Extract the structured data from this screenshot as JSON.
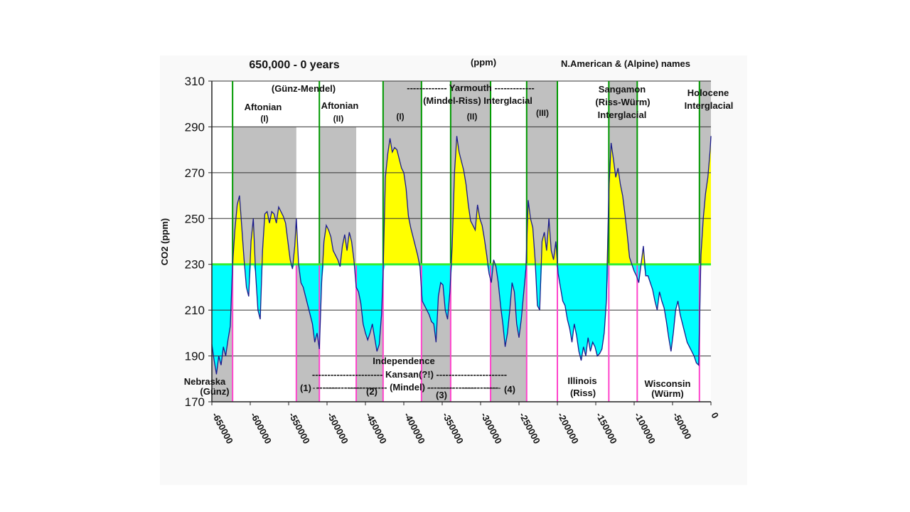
{
  "chart_data": {
    "type": "area",
    "title": "650,000 - 0 years",
    "header_center": "(ppm)",
    "header_right": "N.American & (Alpine) names",
    "ylabel": "CO2 (ppm)",
    "xlabel": "",
    "ylim": [
      170,
      310
    ],
    "xlim": [
      -650000,
      0
    ],
    "baseline": 230,
    "y_ticks": [
      170,
      190,
      210,
      230,
      250,
      270,
      290,
      310
    ],
    "x_ticks": [
      -650000,
      -600000,
      -550000,
      -500000,
      -450000,
      -400000,
      -350000,
      -300000,
      -250000,
      -200000,
      -150000,
      -100000,
      -50000,
      0
    ],
    "colors": {
      "above": "#ffff00",
      "below": "#00ffff",
      "line": "#1a1a8c",
      "interglacial": "#c0c0c0",
      "glacial_boundary": "#ff44cc",
      "interglacial_boundary": "#009900",
      "baseline": "#33ee33"
    },
    "grid": true,
    "interglacial_bands": [
      {
        "x0": -623000,
        "x1": -540000,
        "top": 290
      },
      {
        "x0": -510000,
        "x1": -462000,
        "top": 290
      },
      {
        "x0": -427000,
        "x1": -377000,
        "top": 310
      },
      {
        "x0": -339000,
        "x1": -287000,
        "top": 310
      },
      {
        "x0": -240000,
        "x1": -200000,
        "top": 310
      },
      {
        "x0": -133000,
        "x1": -96000,
        "top": 310
      },
      {
        "x0": -15000,
        "x1": 0,
        "top": 310
      }
    ],
    "glacial_bands": [
      {
        "x0": -540000,
        "x1": -510000
      },
      {
        "x0": -462000,
        "x1": -427000
      },
      {
        "x0": -377000,
        "x1": -339000
      },
      {
        "x0": -287000,
        "x1": -240000
      }
    ],
    "points": [
      [
        -650000,
        195
      ],
      [
        -647000,
        188
      ],
      [
        -644000,
        182
      ],
      [
        -641000,
        190
      ],
      [
        -638000,
        186
      ],
      [
        -635000,
        194
      ],
      [
        -632000,
        190
      ],
      [
        -629000,
        197
      ],
      [
        -626000,
        203
      ],
      [
        -623000,
        230
      ],
      [
        -620000,
        245
      ],
      [
        -617000,
        256
      ],
      [
        -614000,
        260
      ],
      [
        -611000,
        246
      ],
      [
        -608000,
        232
      ],
      [
        -605000,
        220
      ],
      [
        -602000,
        216
      ],
      [
        -599000,
        240
      ],
      [
        -596000,
        250
      ],
      [
        -593000,
        226
      ],
      [
        -590000,
        210
      ],
      [
        -587000,
        206
      ],
      [
        -584000,
        236
      ],
      [
        -581000,
        252
      ],
      [
        -578000,
        253
      ],
      [
        -575000,
        248
      ],
      [
        -572000,
        253
      ],
      [
        -569000,
        252
      ],
      [
        -566000,
        248
      ],
      [
        -563000,
        255
      ],
      [
        -560000,
        253
      ],
      [
        -557000,
        251
      ],
      [
        -554000,
        248
      ],
      [
        -551000,
        240
      ],
      [
        -548000,
        232
      ],
      [
        -545000,
        228
      ],
      [
        -542000,
        238
      ],
      [
        -540000,
        250
      ],
      [
        -537000,
        230
      ],
      [
        -534000,
        222
      ],
      [
        -531000,
        220
      ],
      [
        -528000,
        216
      ],
      [
        -525000,
        212
      ],
      [
        -522000,
        208
      ],
      [
        -519000,
        204
      ],
      [
        -516000,
        196
      ],
      [
        -513000,
        200
      ],
      [
        -510000,
        193
      ],
      [
        -507000,
        222
      ],
      [
        -504000,
        240
      ],
      [
        -501000,
        247
      ],
      [
        -498000,
        245
      ],
      [
        -495000,
        242
      ],
      [
        -492000,
        236
      ],
      [
        -489000,
        234
      ],
      [
        -486000,
        232
      ],
      [
        -483000,
        229
      ],
      [
        -480000,
        238
      ],
      [
        -477000,
        243
      ],
      [
        -474000,
        236
      ],
      [
        -471000,
        244
      ],
      [
        -468000,
        240
      ],
      [
        -465000,
        232
      ],
      [
        -462000,
        220
      ],
      [
        -459000,
        218
      ],
      [
        -456000,
        213
      ],
      [
        -453000,
        204
      ],
      [
        -450000,
        200
      ],
      [
        -447000,
        197
      ],
      [
        -444000,
        200
      ],
      [
        -441000,
        204
      ],
      [
        -438000,
        198
      ],
      [
        -435000,
        192
      ],
      [
        -432000,
        195
      ],
      [
        -429000,
        208
      ],
      [
        -427000,
        226
      ],
      [
        -424000,
        268
      ],
      [
        -421000,
        278
      ],
      [
        -418000,
        285
      ],
      [
        -415000,
        279
      ],
      [
        -412000,
        281
      ],
      [
        -409000,
        280
      ],
      [
        -406000,
        276
      ],
      [
        -403000,
        272
      ],
      [
        -400000,
        270
      ],
      [
        -397000,
        263
      ],
      [
        -394000,
        251
      ],
      [
        -391000,
        246
      ],
      [
        -388000,
        242
      ],
      [
        -385000,
        238
      ],
      [
        -382000,
        234
      ],
      [
        -379000,
        229
      ],
      [
        -376000,
        214
      ],
      [
        -373000,
        212
      ],
      [
        -370000,
        210
      ],
      [
        -367000,
        208
      ],
      [
        -364000,
        205
      ],
      [
        -361000,
        204
      ],
      [
        -358000,
        196
      ],
      [
        -355000,
        216
      ],
      [
        -352000,
        222
      ],
      [
        -349000,
        221
      ],
      [
        -346000,
        210
      ],
      [
        -343000,
        206
      ],
      [
        -340000,
        218
      ],
      [
        -337000,
        238
      ],
      [
        -334000,
        270
      ],
      [
        -331000,
        286
      ],
      [
        -328000,
        279
      ],
      [
        -325000,
        275
      ],
      [
        -322000,
        271
      ],
      [
        -319000,
        265
      ],
      [
        -316000,
        256
      ],
      [
        -313000,
        249
      ],
      [
        -310000,
        247
      ],
      [
        -307000,
        245
      ],
      [
        -304000,
        256
      ],
      [
        -301000,
        250
      ],
      [
        -298000,
        247
      ],
      [
        -295000,
        241
      ],
      [
        -292000,
        234
      ],
      [
        -289000,
        226
      ],
      [
        -286000,
        222
      ],
      [
        -283000,
        232
      ],
      [
        -280000,
        229
      ],
      [
        -277000,
        222
      ],
      [
        -274000,
        212
      ],
      [
        -271000,
        204
      ],
      [
        -268000,
        194
      ],
      [
        -265000,
        200
      ],
      [
        -262000,
        210
      ],
      [
        -259000,
        222
      ],
      [
        -256000,
        218
      ],
      [
        -253000,
        204
      ],
      [
        -250000,
        198
      ],
      [
        -247000,
        206
      ],
      [
        -244000,
        217
      ],
      [
        -241000,
        228
      ],
      [
        -238000,
        258
      ],
      [
        -235000,
        250
      ],
      [
        -232000,
        246
      ],
      [
        -229000,
        232
      ],
      [
        -226000,
        212
      ],
      [
        -223000,
        210
      ],
      [
        -220000,
        240
      ],
      [
        -217000,
        244
      ],
      [
        -214000,
        236
      ],
      [
        -211000,
        250
      ],
      [
        -208000,
        236
      ],
      [
        -205000,
        232
      ],
      [
        -202000,
        240
      ],
      [
        -199000,
        226
      ],
      [
        -196000,
        220
      ],
      [
        -193000,
        214
      ],
      [
        -190000,
        212
      ],
      [
        -187000,
        206
      ],
      [
        -184000,
        202
      ],
      [
        -181000,
        196
      ],
      [
        -178000,
        204
      ],
      [
        -175000,
        199
      ],
      [
        -172000,
        192
      ],
      [
        -169000,
        188
      ],
      [
        -166000,
        194
      ],
      [
        -163000,
        190
      ],
      [
        -160000,
        198
      ],
      [
        -157000,
        192
      ],
      [
        -154000,
        196
      ],
      [
        -151000,
        194
      ],
      [
        -148000,
        190
      ],
      [
        -145000,
        191
      ],
      [
        -142000,
        193
      ],
      [
        -139000,
        200
      ],
      [
        -136000,
        215
      ],
      [
        -133000,
        262
      ],
      [
        -130000,
        283
      ],
      [
        -127000,
        276
      ],
      [
        -124000,
        268
      ],
      [
        -121000,
        272
      ],
      [
        -118000,
        265
      ],
      [
        -115000,
        260
      ],
      [
        -112000,
        252
      ],
      [
        -109000,
        243
      ],
      [
        -106000,
        233
      ],
      [
        -103000,
        230
      ],
      [
        -100000,
        227
      ],
      [
        -97000,
        225
      ],
      [
        -94000,
        222
      ],
      [
        -91000,
        230
      ],
      [
        -88000,
        238
      ],
      [
        -85000,
        225
      ],
      [
        -82000,
        225
      ],
      [
        -79000,
        222
      ],
      [
        -76000,
        219
      ],
      [
        -73000,
        214
      ],
      [
        -70000,
        210
      ],
      [
        -67000,
        218
      ],
      [
        -64000,
        214
      ],
      [
        -61000,
        211
      ],
      [
        -58000,
        205
      ],
      [
        -55000,
        198
      ],
      [
        -52000,
        192
      ],
      [
        -49000,
        200
      ],
      [
        -46000,
        210
      ],
      [
        -43000,
        214
      ],
      [
        -40000,
        208
      ],
      [
        -37000,
        204
      ],
      [
        -34000,
        200
      ],
      [
        -31000,
        196
      ],
      [
        -28000,
        194
      ],
      [
        -25000,
        192
      ],
      [
        -22000,
        190
      ],
      [
        -19000,
        187
      ],
      [
        -16000,
        186
      ],
      [
        -13000,
        234
      ],
      [
        -10000,
        250
      ],
      [
        -7000,
        261
      ],
      [
        -4000,
        268
      ],
      [
        -1000,
        280
      ],
      [
        0,
        286
      ]
    ],
    "annotations": {
      "gunz_mendel": "(Günz-Mendel)",
      "aftonian_1": "Aftonian",
      "aftonian_1_num": "(I)",
      "aftonian_2": "Aftonian",
      "aftonian_2_num": "(II)",
      "yarmouth": "------------- Yarmouth -------------",
      "mindel_riss": "(Mindel-Riss) Interglacial",
      "yarmouth_i": "(I)",
      "yarmouth_ii": "(II)",
      "yarmouth_iii": "(III)",
      "sangamon": "Sangamon",
      "riss_wurm": "(Riss-Würm)",
      "sangamon_ig": "Interglacial",
      "holocene": "Holocene",
      "holocene_ig": "Interglacial",
      "nebraska": "Nebraska",
      "gunz": "(Günz)",
      "independence": "Independence",
      "kansan": "----------------------- Kansan(?!) -----------------------",
      "k1": "(1)",
      "k2": "(2)",
      "k3": "(3)",
      "k4": "(4)",
      "mindel": "----------------------- (Mindel) -----------------------",
      "illinois": "Illinois",
      "riss": "(Riss)",
      "wisconsin": "Wisconsin",
      "wurm": "(Würm)"
    }
  }
}
